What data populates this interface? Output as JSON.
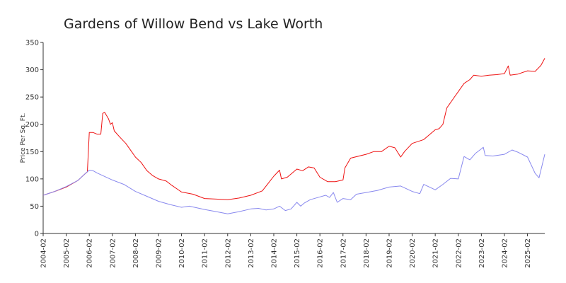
{
  "chart_data": {
    "type": "line",
    "title": "Gardens of Willow Bend vs Lake Worth",
    "xlabel": "",
    "ylabel": "Price Per Sq. Ft.",
    "xlim": [
      "2004-02",
      "2025-11"
    ],
    "ylim": [
      0,
      350
    ],
    "yticks": [
      0,
      50,
      100,
      150,
      200,
      250,
      300,
      350
    ],
    "xticks": [
      "2004-02",
      "2005-02",
      "2006-02",
      "2007-02",
      "2008-02",
      "2009-02",
      "2010-02",
      "2011-02",
      "2012-02",
      "2013-02",
      "2014-02",
      "2015-02",
      "2016-02",
      "2017-02",
      "2018-02",
      "2019-02",
      "2020-02",
      "2021-02",
      "2022-02",
      "2023-02",
      "2024-02",
      "2025-02"
    ],
    "grid": false,
    "legend": "none",
    "series": [
      {
        "color": "#ee1111",
        "points": [
          [
            "2004-02",
            70
          ],
          [
            "2004-08",
            77
          ],
          [
            "2005-02",
            85
          ],
          [
            "2005-08",
            97
          ],
          [
            "2005-12",
            110
          ],
          [
            "2006-01",
            113
          ],
          [
            "2006-02",
            185
          ],
          [
            "2006-04",
            185
          ],
          [
            "2006-06",
            182
          ],
          [
            "2006-08",
            182
          ],
          [
            "2006-09",
            220
          ],
          [
            "2006-10",
            222
          ],
          [
            "2006-12",
            210
          ],
          [
            "2007-01",
            200
          ],
          [
            "2007-02",
            203
          ],
          [
            "2007-03",
            188
          ],
          [
            "2007-06",
            176
          ],
          [
            "2007-09",
            165
          ],
          [
            "2007-12",
            150
          ],
          [
            "2008-02",
            140
          ],
          [
            "2008-05",
            130
          ],
          [
            "2008-08",
            115
          ],
          [
            "2008-11",
            106
          ],
          [
            "2009-02",
            100
          ],
          [
            "2009-06",
            96
          ],
          [
            "2009-09",
            88
          ],
          [
            "2010-02",
            76
          ],
          [
            "2010-08",
            72
          ],
          [
            "2011-02",
            64
          ],
          [
            "2011-08",
            63
          ],
          [
            "2012-02",
            62
          ],
          [
            "2012-08",
            65
          ],
          [
            "2013-02",
            70
          ],
          [
            "2013-08",
            78
          ],
          [
            "2014-02",
            105
          ],
          [
            "2014-05",
            116
          ],
          [
            "2014-06",
            100
          ],
          [
            "2014-09",
            103
          ],
          [
            "2015-02",
            118
          ],
          [
            "2015-05",
            115
          ],
          [
            "2015-08",
            122
          ],
          [
            "2015-11",
            120
          ],
          [
            "2016-02",
            103
          ],
          [
            "2016-06",
            95
          ],
          [
            "2016-10",
            95
          ],
          [
            "2017-02",
            98
          ],
          [
            "2017-03",
            120
          ],
          [
            "2017-06",
            138
          ],
          [
            "2018-02",
            145
          ],
          [
            "2018-06",
            150
          ],
          [
            "2018-10",
            150
          ],
          [
            "2019-02",
            160
          ],
          [
            "2019-05",
            157
          ],
          [
            "2019-08",
            140
          ],
          [
            "2019-10",
            150
          ],
          [
            "2020-02",
            165
          ],
          [
            "2020-08",
            172
          ],
          [
            "2021-02",
            190
          ],
          [
            "2021-04",
            192
          ],
          [
            "2021-06",
            200
          ],
          [
            "2021-08",
            230
          ],
          [
            "2021-12",
            250
          ],
          [
            "2022-02",
            260
          ],
          [
            "2022-05",
            275
          ],
          [
            "2022-08",
            282
          ],
          [
            "2022-10",
            290
          ],
          [
            "2023-02",
            288
          ],
          [
            "2023-06",
            290
          ],
          [
            "2023-10",
            291
          ],
          [
            "2024-02",
            293
          ],
          [
            "2024-04",
            307
          ],
          [
            "2024-05",
            290
          ],
          [
            "2024-09",
            292
          ],
          [
            "2025-02",
            298
          ],
          [
            "2025-06",
            297
          ],
          [
            "2025-09",
            308
          ],
          [
            "2025-11",
            321
          ]
        ]
      },
      {
        "color": "#8888ee",
        "points": [
          [
            "2004-02",
            70
          ],
          [
            "2004-08",
            77
          ],
          [
            "2005-02",
            86
          ],
          [
            "2005-08",
            97
          ],
          [
            "2005-12",
            110
          ],
          [
            "2006-02",
            116
          ],
          [
            "2006-04",
            115
          ],
          [
            "2006-06",
            111
          ],
          [
            "2006-09",
            106
          ],
          [
            "2007-02",
            98
          ],
          [
            "2007-08",
            90
          ],
          [
            "2008-02",
            77
          ],
          [
            "2008-08",
            68
          ],
          [
            "2009-02",
            59
          ],
          [
            "2009-08",
            53
          ],
          [
            "2010-02",
            48
          ],
          [
            "2010-06",
            50
          ],
          [
            "2010-10",
            47
          ],
          [
            "2011-02",
            44
          ],
          [
            "2011-08",
            40
          ],
          [
            "2012-02",
            36
          ],
          [
            "2012-08",
            40
          ],
          [
            "2013-02",
            45
          ],
          [
            "2013-06",
            46
          ],
          [
            "2013-10",
            43
          ],
          [
            "2014-02",
            45
          ],
          [
            "2014-05",
            50
          ],
          [
            "2014-08",
            42
          ],
          [
            "2014-11",
            45
          ],
          [
            "2015-02",
            57
          ],
          [
            "2015-04",
            50
          ],
          [
            "2015-06",
            56
          ],
          [
            "2015-09",
            62
          ],
          [
            "2016-02",
            67
          ],
          [
            "2016-05",
            70
          ],
          [
            "2016-07",
            66
          ],
          [
            "2016-09",
            75
          ],
          [
            "2016-11",
            57
          ],
          [
            "2017-02",
            64
          ],
          [
            "2017-06",
            62
          ],
          [
            "2017-09",
            72
          ],
          [
            "2018-02",
            75
          ],
          [
            "2018-08",
            79
          ],
          [
            "2019-02",
            85
          ],
          [
            "2019-08",
            87
          ],
          [
            "2020-02",
            77
          ],
          [
            "2020-06",
            73
          ],
          [
            "2020-08",
            90
          ],
          [
            "2021-02",
            80
          ],
          [
            "2021-06",
            90
          ],
          [
            "2021-10",
            101
          ],
          [
            "2022-02",
            100
          ],
          [
            "2022-05",
            141
          ],
          [
            "2022-08",
            135
          ],
          [
            "2022-11",
            147
          ],
          [
            "2023-02",
            155
          ],
          [
            "2023-03",
            158
          ],
          [
            "2023-04",
            143
          ],
          [
            "2023-08",
            142
          ],
          [
            "2024-02",
            145
          ],
          [
            "2024-06",
            153
          ],
          [
            "2024-09",
            149
          ],
          [
            "2025-02",
            140
          ],
          [
            "2025-06",
            110
          ],
          [
            "2025-08",
            102
          ],
          [
            "2025-11",
            145
          ]
        ]
      }
    ]
  }
}
